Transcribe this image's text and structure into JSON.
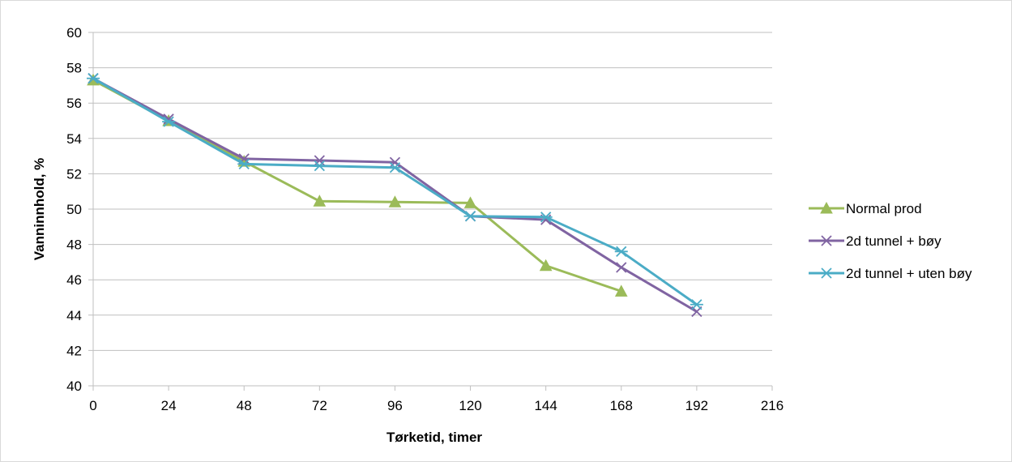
{
  "chart_data": {
    "type": "line",
    "title": "",
    "xlabel": "Tørketid, timer",
    "ylabel": "Vanninnhold, %",
    "xlim": [
      0,
      216
    ],
    "ylim": [
      40,
      60
    ],
    "x_ticks": [
      "0",
      "24",
      "48",
      "72",
      "96",
      "120",
      "144",
      "168",
      "192",
      "216"
    ],
    "y_ticks": [
      "40",
      "42",
      "44",
      "46",
      "48",
      "50",
      "52",
      "54",
      "56",
      "58",
      "60"
    ],
    "grid": "horizontal",
    "legend_position": "right",
    "series": [
      {
        "name": "Normal prod",
        "color": "#9bbb59",
        "marker": "triangle",
        "x": [
          0,
          24,
          48,
          72,
          96,
          120,
          144,
          168
        ],
        "values": [
          57.3,
          55.0,
          52.7,
          50.45,
          50.4,
          50.35,
          46.8,
          45.35
        ]
      },
      {
        "name": "2d tunnel + bøy",
        "color": "#8064a2",
        "marker": "x",
        "x": [
          0,
          24,
          48,
          72,
          96,
          120,
          144,
          168,
          192
        ],
        "values": [
          57.4,
          55.1,
          52.85,
          52.75,
          52.65,
          49.6,
          49.4,
          46.7,
          44.2
        ]
      },
      {
        "name": "2d tunnel + uten bøy",
        "color": "#4bacc6",
        "marker": "asterisk",
        "x": [
          0,
          24,
          48,
          72,
          96,
          120,
          144,
          168,
          192
        ],
        "values": [
          57.4,
          54.95,
          52.55,
          52.45,
          52.35,
          49.6,
          49.55,
          47.6,
          44.6
        ]
      }
    ]
  }
}
